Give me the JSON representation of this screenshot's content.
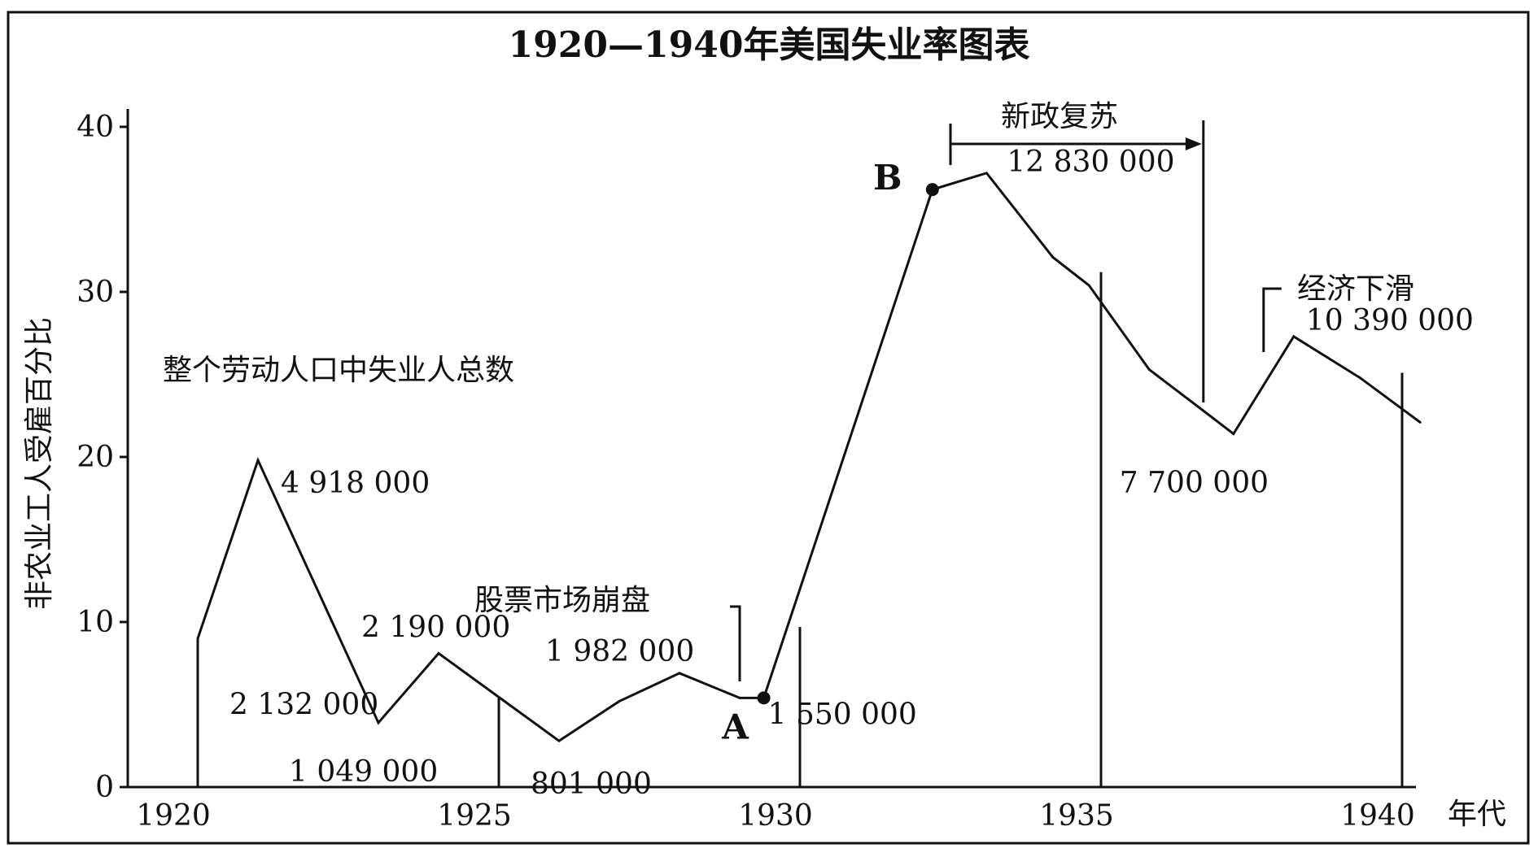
{
  "chart_data": {
    "type": "line",
    "title": "1920—1940年美国失业率图表",
    "xlabel": "年代",
    "ylabel": "非农业工人受雇百分比",
    "xlim": [
      1918.3,
      1941
    ],
    "ylim": [
      0,
      40
    ],
    "x_ticks": [
      "1920",
      "1925",
      "1930",
      "1935",
      "1940"
    ],
    "y_ticks": [
      "0",
      "10",
      "20",
      "30",
      "40"
    ],
    "grid": false,
    "series": [
      {
        "name": "",
        "x": [
          1920,
          1921,
          1923,
          1924,
          1926,
          1927,
          1928,
          1929,
          1929.4,
          1932.2,
          1933.1,
          1934.2,
          1934.8,
          1935.8,
          1936.7,
          1937.2,
          1938.2,
          1939.3,
          1940.3
        ],
        "y": [
          9,
          19.8,
          3.9,
          8.1,
          2.8,
          5.2,
          6.9,
          5.4,
          5.4,
          36.2,
          37.2,
          32.1,
          30.4,
          25.3,
          22.8,
          21.4,
          27.3,
          24.8,
          22.1
        ]
      }
    ],
    "series_label": "整个劳动人口中失业人总数",
    "value_annotations": [
      {
        "text": "4 918 000",
        "x": 1921,
        "y": 19.8
      },
      {
        "text": "2 132 000",
        "x": 1920.5,
        "y": 5.8
      },
      {
        "text": "1 049 000",
        "x": 1923,
        "y": 3.9
      },
      {
        "text": "2 190 000",
        "x": 1924,
        "y": 8.1
      },
      {
        "text": "801 000",
        "x": 1926,
        "y": 2.8
      },
      {
        "text": "1 982 000",
        "x": 1928,
        "y": 6.9
      },
      {
        "text": "1 550 000",
        "x": 1929.4,
        "y": 5.4
      },
      {
        "text": "12 830 000",
        "x": 1933.1,
        "y": 37.2
      },
      {
        "text": "7 700 000",
        "x": 1937.2,
        "y": 21.4
      },
      {
        "text": "10 390 000",
        "x": 1938.2,
        "y": 27.3
      }
    ],
    "points": [
      {
        "label": "A",
        "x": 1929.4,
        "y": 5.4
      },
      {
        "label": "B",
        "x": 1932.2,
        "y": 36.2
      }
    ],
    "events": [
      {
        "text": "股票市场崩盘",
        "x": 1929
      },
      {
        "text": "新政复苏",
        "x_start": 1932.5,
        "x_end": 1936.7
      },
      {
        "text": "经济下滑",
        "x": 1937.7
      }
    ]
  }
}
